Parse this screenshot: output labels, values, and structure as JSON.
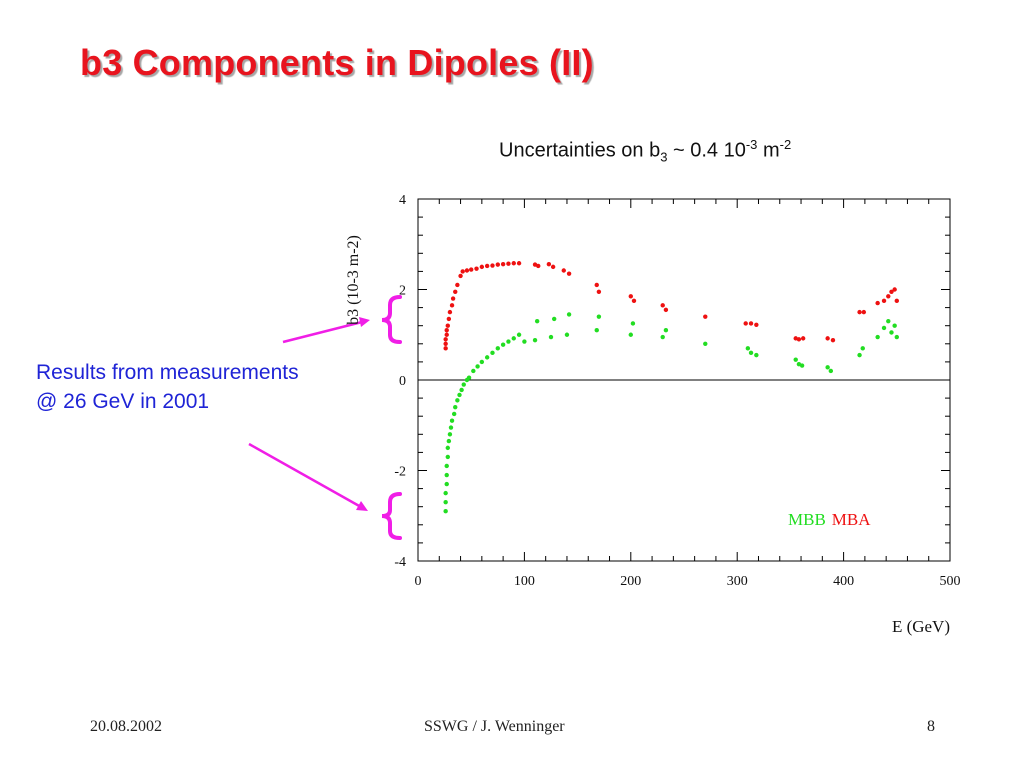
{
  "slide": {
    "title": "b3 Components in Dipoles (II)",
    "uncertainty": {
      "lead": "Uncertainties on b",
      "sub": "3",
      "mid": " ~ 0.4 10",
      "sup1": "-3",
      "unit": " m",
      "sup2": "-2"
    },
    "note_lines": [
      "Results from measurements",
      "@ 26 GeV in 2001"
    ],
    "footer": {
      "date": "20.08.2002",
      "center": "SSWG / J. Wenninger",
      "page": "8"
    },
    "colors": {
      "title": "#e8141e",
      "note": "#1f24d6",
      "arrows": "#f01ee6"
    }
  },
  "chart_data": {
    "type": "scatter",
    "title": "",
    "xlabel": "E (GeV)",
    "ylabel": "b3 (10-3 m-2)",
    "xlim": [
      0,
      500
    ],
    "ylim": [
      -4,
      4
    ],
    "x_ticks": [
      0,
      100,
      200,
      300,
      400,
      500
    ],
    "y_ticks": [
      -4,
      -2,
      0,
      2,
      4
    ],
    "zero_line": true,
    "legend": {
      "placement": "bottom-right",
      "entries": [
        "MBB",
        "MBA"
      ]
    },
    "series": [
      {
        "name": "MBB",
        "color": "#22dd22",
        "points": [
          [
            26,
            -2.9
          ],
          [
            26,
            -2.7
          ],
          [
            26,
            -2.5
          ],
          [
            27,
            -2.3
          ],
          [
            27,
            -2.1
          ],
          [
            27,
            -1.9
          ],
          [
            28,
            -1.7
          ],
          [
            28,
            -1.5
          ],
          [
            29,
            -1.35
          ],
          [
            30,
            -1.2
          ],
          [
            31,
            -1.05
          ],
          [
            32,
            -0.9
          ],
          [
            34,
            -0.75
          ],
          [
            35,
            -0.6
          ],
          [
            37,
            -0.45
          ],
          [
            39,
            -0.33
          ],
          [
            41,
            -0.22
          ],
          [
            43,
            -0.1
          ],
          [
            46,
            0.0
          ],
          [
            48,
            0.05
          ],
          [
            52,
            0.2
          ],
          [
            56,
            0.3
          ],
          [
            60,
            0.4
          ],
          [
            65,
            0.5
          ],
          [
            70,
            0.6
          ],
          [
            75,
            0.7
          ],
          [
            80,
            0.78
          ],
          [
            85,
            0.85
          ],
          [
            90,
            0.92
          ],
          [
            95,
            1.0
          ],
          [
            100,
            0.85
          ],
          [
            110,
            0.88
          ],
          [
            112,
            1.3
          ],
          [
            125,
            0.95
          ],
          [
            128,
            1.35
          ],
          [
            140,
            1.0
          ],
          [
            142,
            1.45
          ],
          [
            168,
            1.1
          ],
          [
            170,
            1.4
          ],
          [
            200,
            1.0
          ],
          [
            202,
            1.25
          ],
          [
            230,
            0.95
          ],
          [
            233,
            1.1
          ],
          [
            270,
            0.8
          ],
          [
            310,
            0.7
          ],
          [
            313,
            0.6
          ],
          [
            318,
            0.55
          ],
          [
            355,
            0.45
          ],
          [
            358,
            0.35
          ],
          [
            361,
            0.32
          ],
          [
            385,
            0.28
          ],
          [
            388,
            0.2
          ],
          [
            415,
            0.55
          ],
          [
            418,
            0.7
          ],
          [
            432,
            0.95
          ],
          [
            438,
            1.15
          ],
          [
            442,
            1.3
          ],
          [
            445,
            1.05
          ],
          [
            448,
            1.2
          ],
          [
            450,
            0.95
          ]
        ]
      },
      {
        "name": "MBA",
        "color": "#ee1111",
        "points": [
          [
            26,
            0.7
          ],
          [
            26,
            0.8
          ],
          [
            26,
            0.9
          ],
          [
            27,
            1.0
          ],
          [
            27,
            1.1
          ],
          [
            28,
            1.2
          ],
          [
            29,
            1.35
          ],
          [
            30,
            1.5
          ],
          [
            32,
            1.65
          ],
          [
            33,
            1.8
          ],
          [
            35,
            1.95
          ],
          [
            37,
            2.1
          ],
          [
            40,
            2.3
          ],
          [
            42,
            2.4
          ],
          [
            46,
            2.42
          ],
          [
            50,
            2.44
          ],
          [
            55,
            2.46
          ],
          [
            60,
            2.5
          ],
          [
            65,
            2.52
          ],
          [
            70,
            2.53
          ],
          [
            75,
            2.55
          ],
          [
            80,
            2.56
          ],
          [
            85,
            2.57
          ],
          [
            90,
            2.58
          ],
          [
            95,
            2.58
          ],
          [
            110,
            2.55
          ],
          [
            113,
            2.52
          ],
          [
            123,
            2.56
          ],
          [
            127,
            2.5
          ],
          [
            137,
            2.42
          ],
          [
            142,
            2.35
          ],
          [
            168,
            2.1
          ],
          [
            170,
            1.95
          ],
          [
            200,
            1.85
          ],
          [
            203,
            1.75
          ],
          [
            230,
            1.65
          ],
          [
            233,
            1.55
          ],
          [
            270,
            1.4
          ],
          [
            308,
            1.25
          ],
          [
            313,
            1.25
          ],
          [
            318,
            1.22
          ],
          [
            355,
            0.92
          ],
          [
            358,
            0.9
          ],
          [
            362,
            0.92
          ],
          [
            385,
            0.92
          ],
          [
            390,
            0.88
          ],
          [
            415,
            1.5
          ],
          [
            419,
            1.5
          ],
          [
            432,
            1.7
          ],
          [
            438,
            1.75
          ],
          [
            442,
            1.85
          ],
          [
            445,
            1.95
          ],
          [
            448,
            2.0
          ],
          [
            450,
            1.75
          ]
        ]
      }
    ]
  }
}
